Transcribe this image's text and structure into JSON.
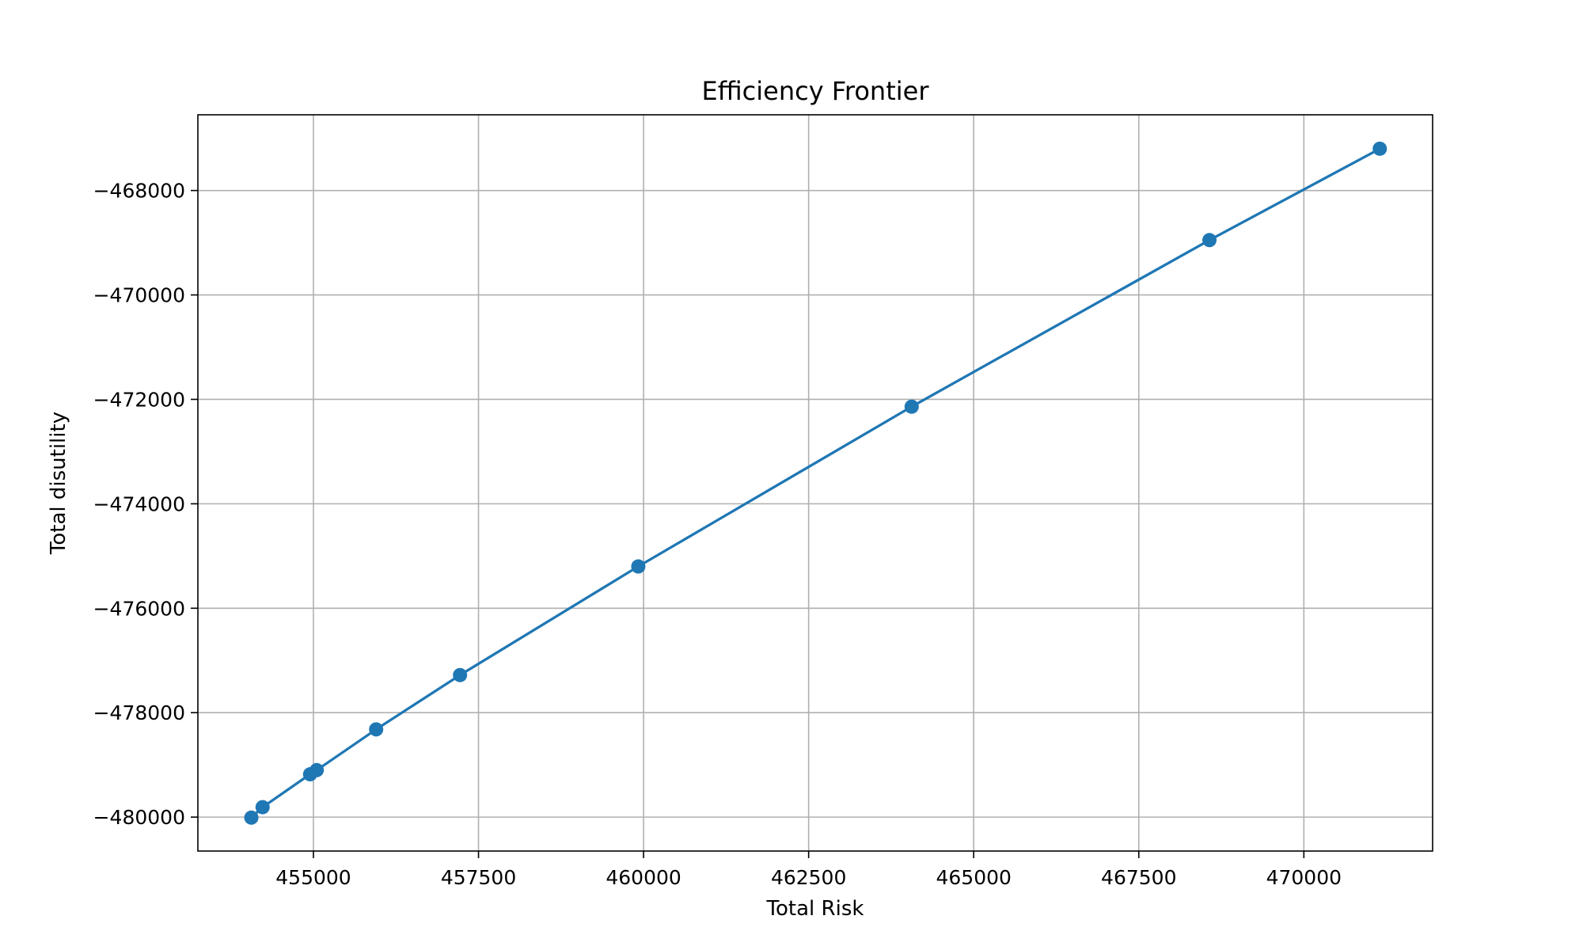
{
  "chart_data": {
    "type": "line",
    "title": "Efficiency Frontier",
    "xlabel": "Total Risk",
    "ylabel": "Total disutility",
    "xlim": [
      453250,
      471950
    ],
    "ylim": [
      -480650,
      -466550
    ],
    "xticks": [
      455000,
      457500,
      460000,
      462500,
      465000,
      467500,
      470000
    ],
    "yticks": [
      -480000,
      -478000,
      -476000,
      -474000,
      -472000,
      -470000,
      -468000
    ],
    "xtick_labels": [
      "455000",
      "457500",
      "460000",
      "462500",
      "465000",
      "467500",
      "470000"
    ],
    "ytick_labels": [
      "−480000",
      "−478000",
      "−476000",
      "−474000",
      "−472000",
      "−470000",
      "−468000"
    ],
    "grid": true,
    "legend": "none",
    "series": [
      {
        "color": "#1f77b4",
        "marker": "circle",
        "points": [
          {
            "x": 471150,
            "y": -467200
          },
          {
            "x": 468570,
            "y": -468950
          },
          {
            "x": 464060,
            "y": -472140
          },
          {
            "x": 459920,
            "y": -475200
          },
          {
            "x": 457220,
            "y": -477280
          },
          {
            "x": 455950,
            "y": -478320
          },
          {
            "x": 455050,
            "y": -479100
          },
          {
            "x": 454950,
            "y": -479180
          },
          {
            "x": 454230,
            "y": -479810
          },
          {
            "x": 454060,
            "y": -480010
          }
        ]
      }
    ]
  }
}
